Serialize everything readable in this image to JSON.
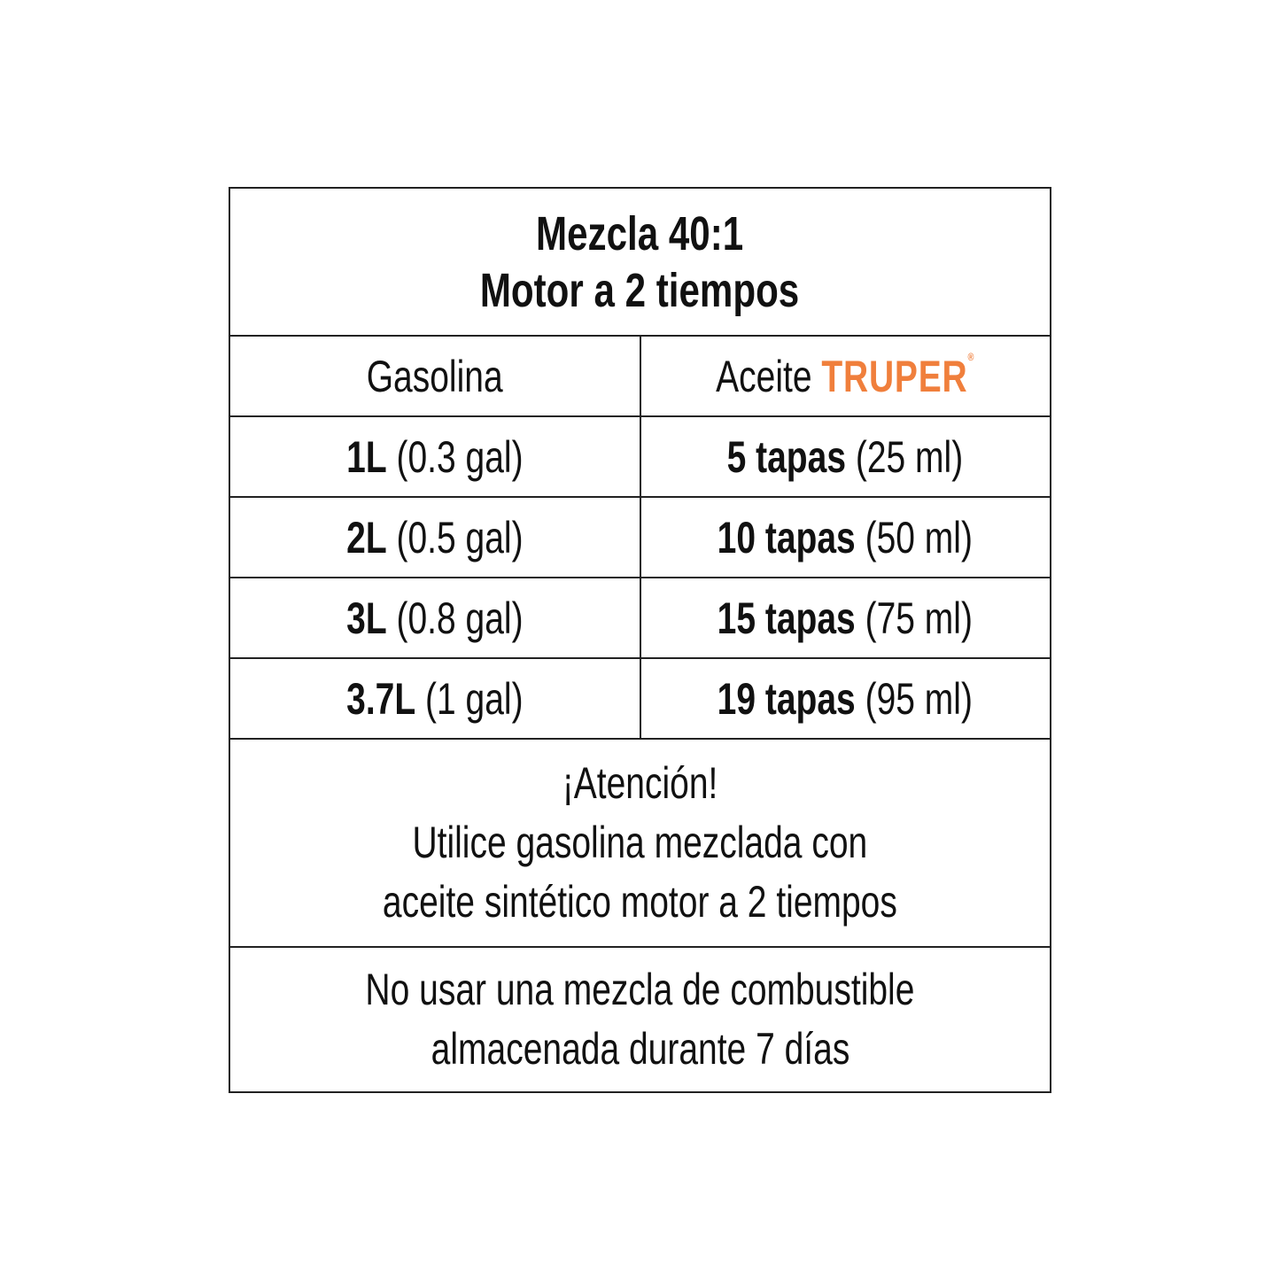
{
  "title": {
    "line1": "Mezcla 40:1",
    "line2": "Motor a 2 tiempos"
  },
  "headers": {
    "gasolina": "Gasolina",
    "aceite": "Aceite",
    "brand": "TRUPER",
    "brand_mark": "®",
    "brand_color": "#f07f3c"
  },
  "rows": [
    {
      "gas_bold": "1L",
      "gas_rest": " (0.3 gal)",
      "oil_bold": "5 tapas",
      "oil_rest": " (25 ml)"
    },
    {
      "gas_bold": "2L",
      "gas_rest": " (0.5 gal)",
      "oil_bold": "10 tapas",
      "oil_rest": " (50 ml)"
    },
    {
      "gas_bold": "3L",
      "gas_rest": " (0.8 gal)",
      "oil_bold": "15 tapas",
      "oil_rest": " (75 ml)"
    },
    {
      "gas_bold": "3.7L",
      "gas_rest": " (1 gal)",
      "oil_bold": "19 tapas",
      "oil_rest": " (95 ml)"
    }
  ],
  "warning": {
    "line1": "¡Atención!",
    "line2": "Utilice gasolina mezclada con",
    "line3": "aceite sintético motor a 2 tiempos"
  },
  "note": {
    "line1": "No usar una mezcla de combustible",
    "line2": "almacenada durante 7 días"
  }
}
